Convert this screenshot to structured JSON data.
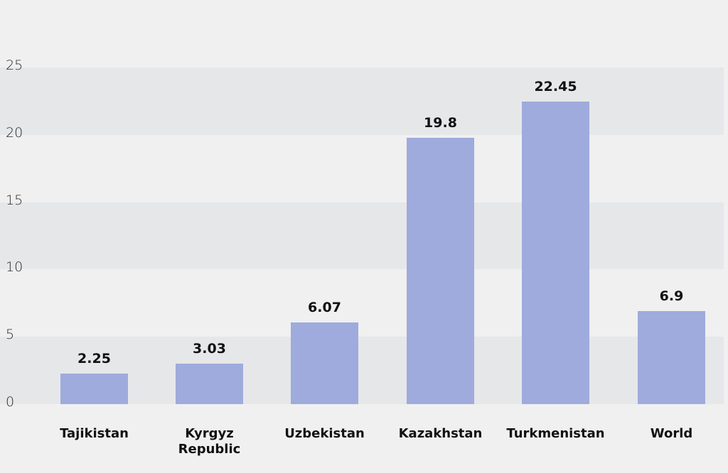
{
  "chart_data": {
    "type": "bar",
    "title": "",
    "xlabel": "",
    "ylabel": "",
    "categories": [
      "Tajikistan",
      "Kyrgyz Republic",
      "Uzbekistan",
      "Kazakhstan",
      "Turkmenistan",
      "World"
    ],
    "category_labels": [
      [
        "Tajikistan"
      ],
      [
        "Kyrgyz",
        "Republic"
      ],
      [
        "Uzbekistan"
      ],
      [
        "Kazakhstan"
      ],
      [
        "Turkmenistan"
      ],
      [
        "World"
      ]
    ],
    "values": [
      2.25,
      3.03,
      6.07,
      19.8,
      22.45,
      6.9
    ],
    "value_labels": [
      "2.25",
      "3.03",
      "6.07",
      "19.8",
      "22.45",
      "6.9"
    ],
    "yticks": [
      0,
      5,
      10,
      15,
      20,
      25
    ],
    "ylim": [
      0,
      25
    ],
    "grid": "alternating horizontal bands",
    "legend": "none"
  },
  "colors": {
    "background": "#f0f0f0",
    "band_dark": "#e6e7e9",
    "band_light": "#f0f0f0",
    "bar": "#9eabdc"
  }
}
